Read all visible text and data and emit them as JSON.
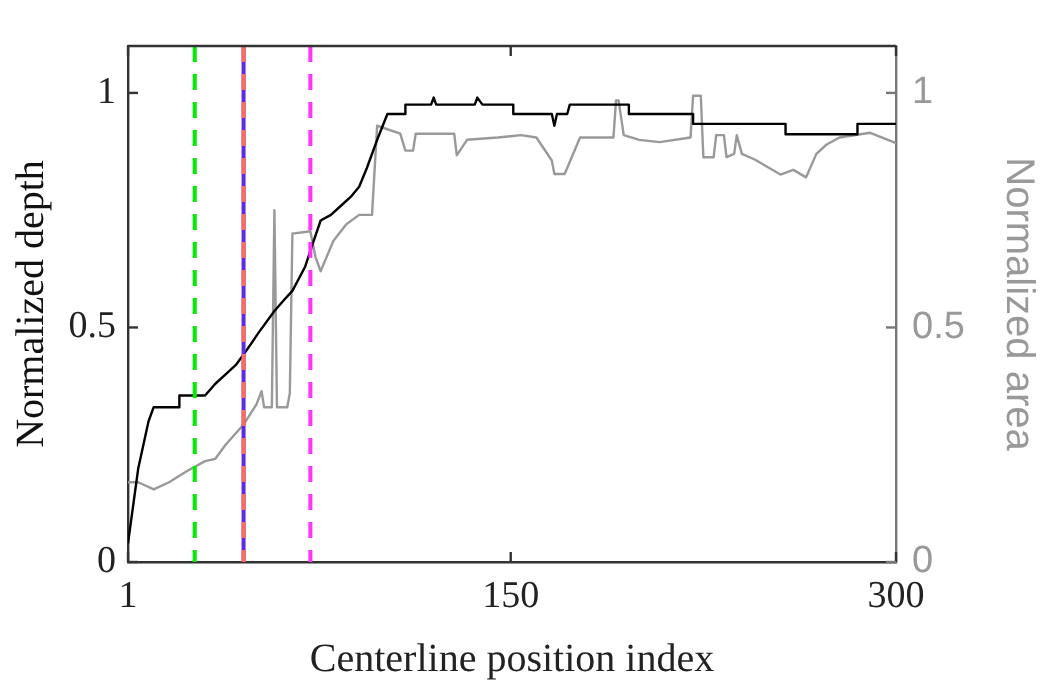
{
  "chart_data": {
    "type": "line",
    "xlabel": "Centerline position index",
    "ylabel": "Normalized depth",
    "y2label": "Normalized area",
    "xlim": [
      1,
      300
    ],
    "xticks": [
      1,
      150,
      300
    ],
    "ylim": [
      0,
      1.1
    ],
    "yticks": [
      0,
      0.5,
      1
    ],
    "y2lim": [
      0,
      1.1
    ],
    "y2ticks": [
      0,
      0.5,
      1
    ],
    "grid": false,
    "legend": false,
    "marker": "none",
    "line_style": "solid",
    "series": [
      {
        "color": "#000000",
        "x": [
          1,
          5,
          9,
          11,
          21,
          21,
          31,
          35,
          39,
          43,
          47,
          52,
          58,
          62,
          65,
          70,
          73,
          76,
          80,
          84,
          88,
          91,
          94,
          98,
          102,
          109,
          109,
          119,
          120,
          121,
          136,
          137,
          139,
          151,
          151,
          166,
          167,
          168,
          172,
          173,
          196,
          196,
          221,
          221,
          257,
          257,
          285,
          285,
          300
        ],
        "values": [
          0.04,
          0.2,
          0.3,
          0.33,
          0.33,
          0.355,
          0.355,
          0.38,
          0.4,
          0.42,
          0.45,
          0.49,
          0.535,
          0.56,
          0.578,
          0.63,
          0.68,
          0.728,
          0.74,
          0.76,
          0.78,
          0.8,
          0.84,
          0.9,
          0.955,
          0.955,
          0.975,
          0.975,
          0.99,
          0.975,
          0.975,
          0.99,
          0.975,
          0.975,
          0.955,
          0.955,
          0.93,
          0.955,
          0.955,
          0.975,
          0.975,
          0.955,
          0.955,
          0.934,
          0.934,
          0.912,
          0.912,
          0.934,
          0.934
        ]
      },
      {
        "color": "#999999",
        "axis": "y2",
        "x": [
          1,
          5,
          11,
          17,
          24,
          31,
          35,
          39,
          46,
          51,
          53,
          54,
          57,
          58,
          59,
          63,
          64,
          65,
          72,
          74,
          76,
          81,
          86,
          91,
          96,
          98,
          107,
          109,
          112,
          113,
          128,
          129,
          133,
          145,
          154,
          160,
          166,
          167,
          171,
          177,
          190,
          191,
          192,
          194,
          200,
          208,
          220,
          221,
          224,
          225,
          229,
          230,
          233,
          234,
          237,
          238,
          240,
          245,
          250,
          255,
          260,
          265,
          269,
          273,
          278,
          290,
          300
        ],
        "values": [
          0.17,
          0.17,
          0.155,
          0.17,
          0.194,
          0.215,
          0.22,
          0.25,
          0.293,
          0.336,
          0.364,
          0.33,
          0.33,
          0.75,
          0.33,
          0.33,
          0.36,
          0.7,
          0.705,
          0.65,
          0.62,
          0.685,
          0.72,
          0.74,
          0.74,
          0.93,
          0.913,
          0.877,
          0.877,
          0.913,
          0.913,
          0.867,
          0.9,
          0.905,
          0.91,
          0.905,
          0.856,
          0.827,
          0.827,
          0.905,
          0.905,
          0.984,
          0.984,
          0.91,
          0.9,
          0.895,
          0.905,
          0.994,
          0.994,
          0.863,
          0.863,
          0.91,
          0.91,
          0.863,
          0.87,
          0.91,
          0.87,
          0.858,
          0.842,
          0.826,
          0.836,
          0.82,
          0.87,
          0.89,
          0.905,
          0.915,
          0.893
        ]
      }
    ],
    "ref_lines": [
      {
        "axis": "x",
        "value": 27,
        "color": "#00ee00",
        "line_style": "dashed"
      },
      {
        "axis": "x",
        "value": 46,
        "color": "#5a2de0",
        "line_style": "solid"
      },
      {
        "axis": "x",
        "value": 46,
        "color": "#ff6a5a",
        "line_style": "dashed"
      },
      {
        "axis": "x",
        "value": 72,
        "color": "#ff33ff",
        "line_style": "dashed"
      }
    ]
  }
}
